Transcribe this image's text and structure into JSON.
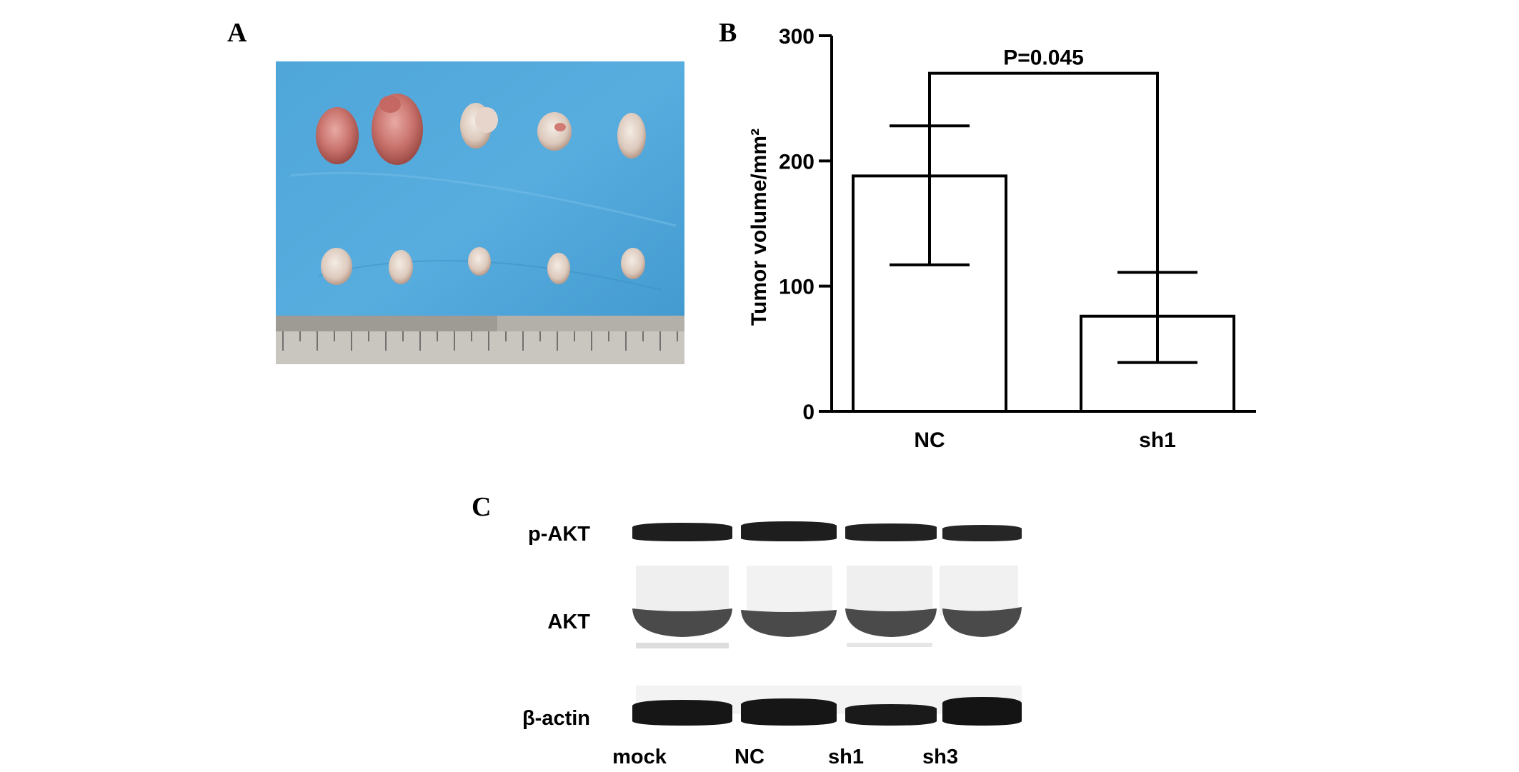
{
  "panels": {
    "a": {
      "letter": "A"
    },
    "b": {
      "letter": "B"
    },
    "c": {
      "letter": "C"
    }
  },
  "chart_data": {
    "type": "bar",
    "categories": [
      "NC",
      "sh1"
    ],
    "values": [
      188,
      76
    ],
    "error_low": [
      117,
      39
    ],
    "error_high": [
      228,
      111
    ],
    "ylabel": "Tumor volume/mm²",
    "ylim": [
      0,
      300
    ],
    "yticks": [
      0,
      100,
      200,
      300
    ],
    "annotation": "P=0.045",
    "grid": false
  },
  "blot": {
    "rows": [
      "p-AKT",
      "AKT",
      "β-actin"
    ],
    "lanes": [
      "mock",
      "NC",
      "sh1",
      "sh3"
    ]
  }
}
